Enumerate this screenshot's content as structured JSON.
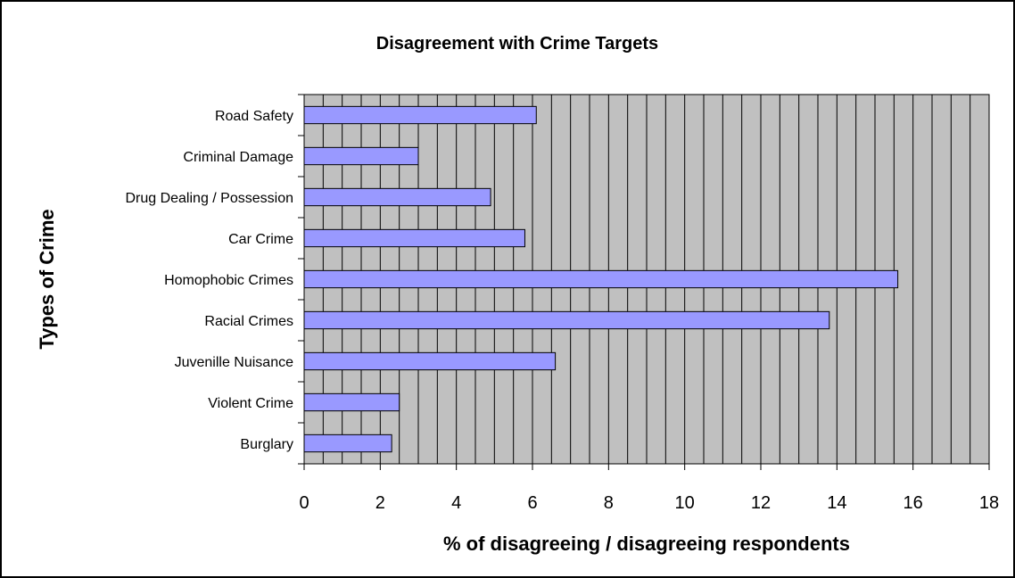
{
  "chart_data": {
    "type": "bar",
    "orientation": "horizontal",
    "title": "Disagreement with Crime Targets",
    "xlabel": "% of disagreeing / disagreeing respondents",
    "ylabel": "Types of Crime",
    "categories": [
      "Road Safety",
      "Criminal Damage",
      "Drug Dealing / Possession",
      "Car Crime",
      "Homophobic Crimes",
      "Racial Crimes",
      "Juvenille Nuisance",
      "Violent Crime",
      "Burglary"
    ],
    "values": [
      6.1,
      3.0,
      4.9,
      5.8,
      15.6,
      13.8,
      6.6,
      2.5,
      2.3
    ],
    "xlim": [
      0,
      18
    ],
    "x_ticks": [
      "0",
      "2",
      "4",
      "6",
      "8",
      "10",
      "12",
      "14",
      "16",
      "18"
    ],
    "x_minor_gridline_step": 0.5,
    "grid": true,
    "legend": "none",
    "colors": {
      "bar_fill": "#9999ff",
      "bar_stroke": "#000000",
      "plot_background": "#c0c0c0",
      "gridline": "#000000",
      "frame": "#000000"
    }
  }
}
